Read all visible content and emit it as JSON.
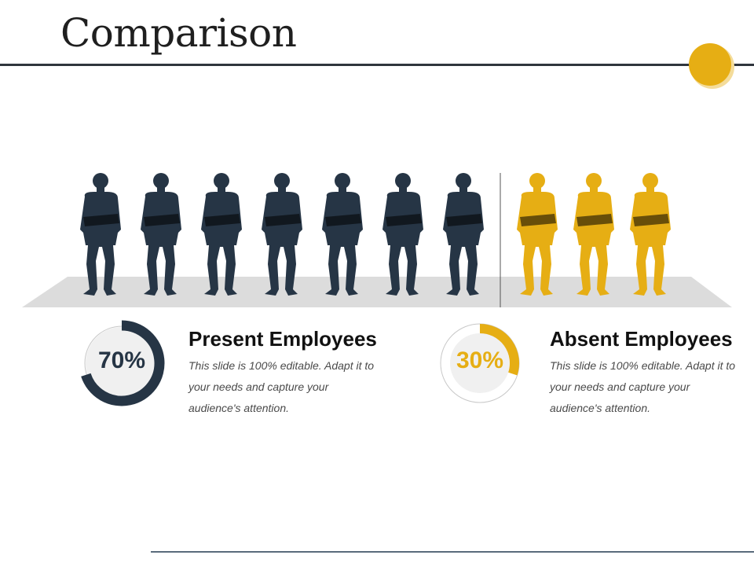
{
  "slide": {
    "title": "Comparison"
  },
  "colors": {
    "present": "#263545",
    "absent": "#e6ae14",
    "floor": "#dcdcdc",
    "track_fill": "#f0f0f0",
    "track_outline": "#c8c8c8",
    "accent": "#e6ae14"
  },
  "icons": {
    "figure": "person-standing-arms-crossed-icon",
    "accent": "circle-dot-icon"
  },
  "chart_data": {
    "type": "pictograph",
    "total": 10,
    "categories": [
      {
        "name": "Present Employees",
        "count": 7,
        "percent": 70,
        "percent_label": "70%",
        "description": "This slide is 100% editable. Adapt it to your needs and capture your audience's attention."
      },
      {
        "name": "Absent Employees",
        "count": 3,
        "percent": 30,
        "percent_label": "30%",
        "description": "This slide is 100% editable. Adapt it to your needs and capture your audience's attention."
      }
    ]
  }
}
